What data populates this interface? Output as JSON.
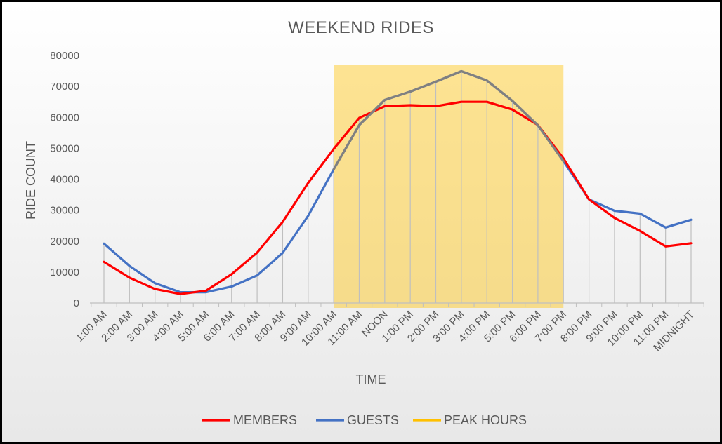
{
  "chart_data": {
    "type": "line",
    "title": "WEEKEND  RIDES",
    "xlabel": "TIME",
    "ylabel": "RIDE COUNT",
    "ylim": [
      0,
      80000
    ],
    "yticks": [
      "0",
      "10000",
      "20000",
      "30000",
      "40000",
      "50000",
      "60000",
      "70000",
      "80000"
    ],
    "categories": [
      "1:00 AM",
      "2:00 AM",
      "3:00 AM",
      "4:00 AM",
      "5:00 AM",
      "6:00 AM",
      "7:00 AM",
      "8:00 AM",
      "9:00 AM",
      "10:00 AM",
      "11:00 AM",
      "NOON",
      "1:00 PM",
      "2:00 PM",
      "3:00 PM",
      "4:00 PM",
      "5:00 PM",
      "6:00 PM",
      "7:00 PM",
      "8:00 PM",
      "9:00 PM",
      "10:00 PM",
      "11:00 PM",
      "MIDNIGHT"
    ],
    "series": [
      {
        "name": "MEMBERS",
        "color": "#ff0000",
        "values": [
          13300,
          8200,
          4500,
          2900,
          4000,
          9300,
          16300,
          26200,
          38800,
          49800,
          59800,
          63600,
          63900,
          63600,
          65000,
          65000,
          62500,
          57500,
          46700,
          33500,
          27500,
          23300,
          18300,
          19300
        ]
      },
      {
        "name": "GUESTS",
        "color": "#4472c4",
        "values": [
          19200,
          12000,
          6400,
          3500,
          3500,
          5300,
          8900,
          16200,
          28200,
          43200,
          57500,
          65600,
          68300,
          71500,
          74900,
          71900,
          65300,
          57400,
          45800,
          33500,
          29800,
          28900,
          24400,
          26900
        ]
      },
      {
        "name": "PEAK HOURS",
        "color": "#ffc000",
        "range": [
          "10:00 AM",
          "7:00 PM"
        ],
        "top": 77000
      }
    ],
    "peak_line_color": "#808080",
    "grid": false,
    "drop_lines": true,
    "legend_position": "bottom"
  }
}
